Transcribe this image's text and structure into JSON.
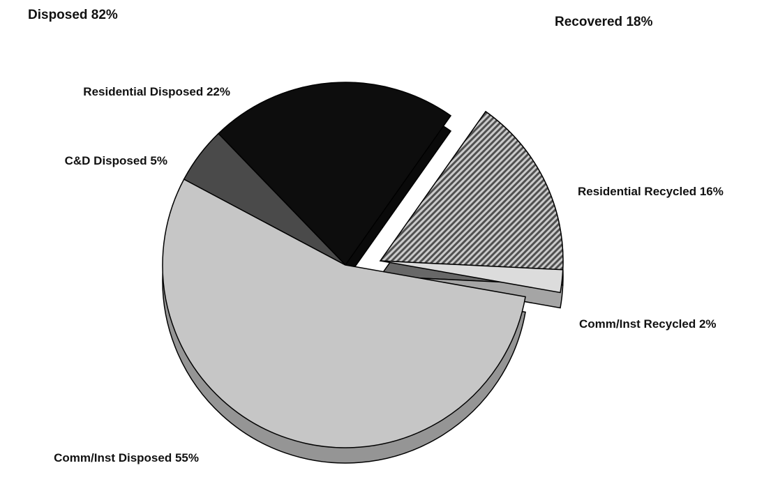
{
  "chart_data": {
    "type": "pie",
    "annotations": [
      "Disposed 82%",
      "Recovered 18%"
    ],
    "categories": [
      "Residential Disposed",
      "Residential Recycled",
      "Comm/Inst Recycled",
      "Comm/Inst Disposed",
      "C&D Disposed"
    ],
    "values": [
      22,
      16,
      2,
      55,
      5
    ],
    "value_labels": [
      "22%",
      "16%",
      "2%",
      "55%",
      "5%"
    ],
    "colors": [
      "#0d0d0d",
      "#8a8a8a",
      "#dcdcdc",
      "#c6c6c6",
      "#4a4a4a"
    ],
    "exploded": [
      false,
      true,
      true,
      false,
      false
    ]
  }
}
